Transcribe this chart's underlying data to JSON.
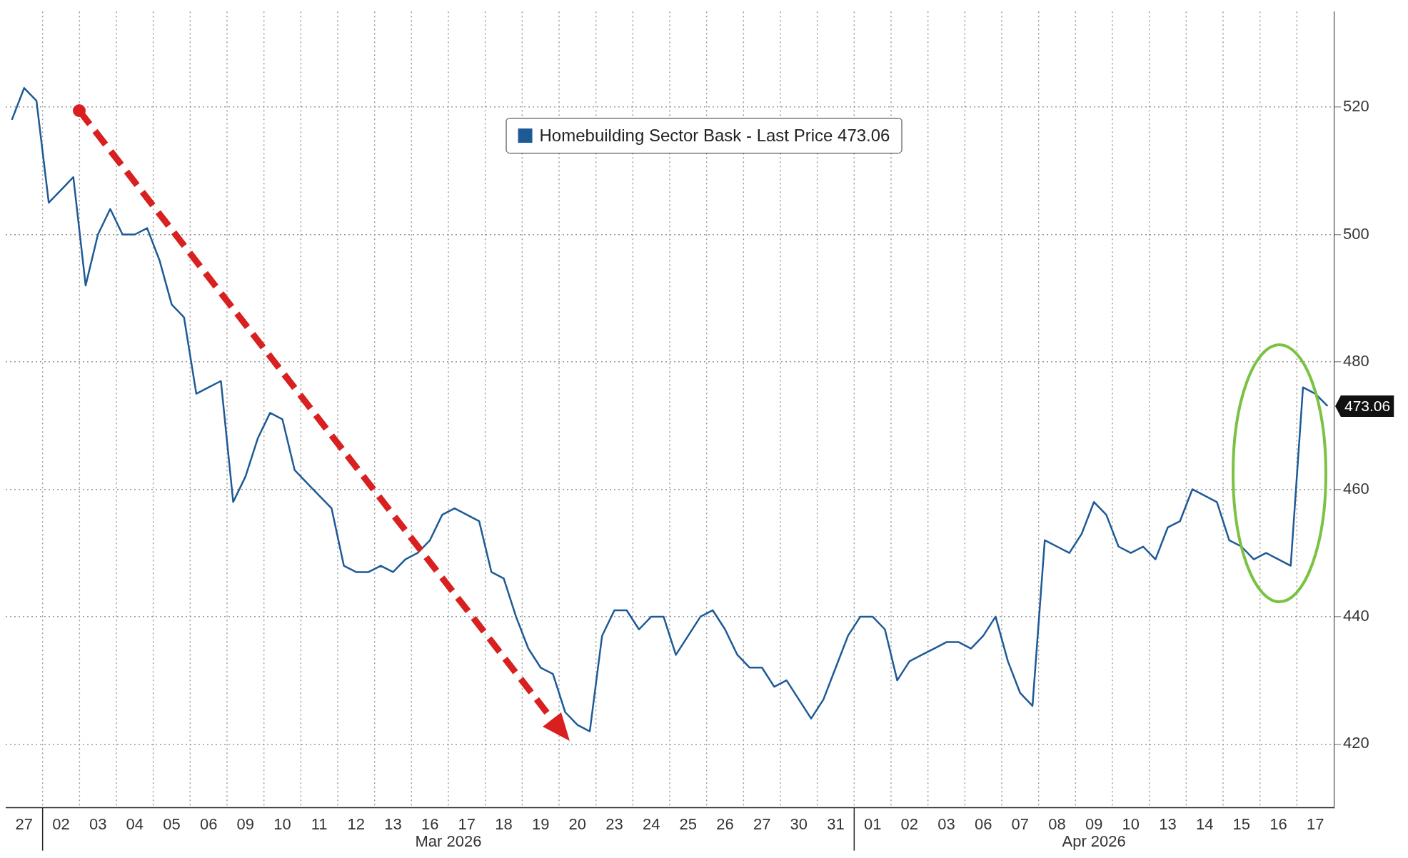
{
  "chart_data": {
    "type": "line",
    "categories": [
      null,
      "27",
      null,
      null,
      "02",
      null,
      null,
      "03",
      null,
      null,
      "04",
      null,
      null,
      "05",
      null,
      null,
      "06",
      null,
      null,
      "09",
      null,
      null,
      "10",
      null,
      null,
      "11",
      null,
      null,
      "12",
      null,
      null,
      "13",
      null,
      null,
      "16",
      null,
      null,
      "17",
      null,
      null,
      "18",
      null,
      null,
      "19",
      null,
      null,
      "20",
      null,
      null,
      "23",
      null,
      null,
      "24",
      null,
      null,
      "25",
      null,
      null,
      "26",
      null,
      null,
      "27",
      null,
      null,
      "30",
      null,
      null,
      "31",
      null,
      null,
      "01",
      null,
      null,
      "02",
      null,
      null,
      "03",
      null,
      null,
      "06",
      null,
      null,
      "07",
      null,
      null,
      "08",
      null,
      null,
      "09",
      null,
      null,
      "10",
      null,
      null,
      "13",
      null,
      null,
      "14",
      null,
      null,
      "15",
      null,
      null,
      "16",
      null,
      null,
      "17",
      null
    ],
    "series": [
      {
        "name": "Homebuilding Sector Bask - Last Price 473.06",
        "color": "#1e5a96",
        "values": [
          518,
          523,
          521,
          505,
          507,
          509,
          492,
          500,
          504,
          500,
          500,
          501,
          496,
          489,
          487,
          475,
          476,
          477,
          458,
          462,
          468,
          472,
          471,
          463,
          461,
          459,
          457,
          448,
          447,
          447,
          448,
          447,
          449,
          450,
          452,
          456,
          457,
          456,
          455,
          447,
          446,
          440,
          435,
          432,
          431,
          425,
          423,
          422,
          437,
          441,
          441,
          438,
          440,
          440,
          434,
          437,
          440,
          441,
          438,
          434,
          432,
          432,
          429,
          430,
          427,
          424,
          427,
          432,
          437,
          440,
          440,
          438,
          430,
          433,
          434,
          435,
          436,
          436,
          435,
          437,
          440,
          433,
          428,
          426,
          452,
          451,
          450,
          453,
          458,
          456,
          451,
          450,
          451,
          449,
          454,
          455,
          460,
          459,
          458,
          452,
          451,
          449,
          450,
          449,
          448,
          476,
          475,
          473.06
        ]
      }
    ],
    "annotations": [
      "Mar 2026",
      "Apr 2026",
      "473.06"
    ],
    "ylim": [
      410,
      535
    ],
    "yticks": [
      420,
      440,
      460,
      480,
      500,
      520
    ],
    "grid": true,
    "legend": "top",
    "marker": "none",
    "line_style": "solid"
  }
}
